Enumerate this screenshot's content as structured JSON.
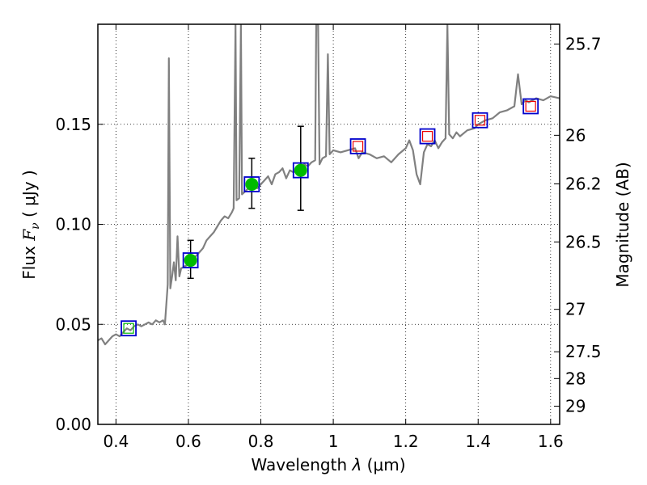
{
  "chart_data": {
    "type": "line",
    "xlabel": {
      "prefix": "Wavelength  ",
      "symbol": "λ",
      "suffix": " (μm)"
    },
    "ylabel": {
      "prefix": "Flux  ",
      "symbol": "F",
      "subscript": "ν",
      "suffix": "  ( μJy )"
    },
    "y2label": "Magnitude (AB)",
    "xlim": [
      0.35,
      1.625
    ],
    "ylim": [
      0.0,
      0.2
    ],
    "grid": true,
    "x_ticks": [
      {
        "value": 0.4,
        "label": "0.4"
      },
      {
        "value": 0.6,
        "label": "0.6"
      },
      {
        "value": 0.8,
        "label": "0.8"
      },
      {
        "value": 1.0,
        "label": "1"
      },
      {
        "value": 1.2,
        "label": "1.2"
      },
      {
        "value": 1.4,
        "label": "1.4"
      },
      {
        "value": 1.6,
        "label": "1.6"
      }
    ],
    "y_ticks": [
      {
        "value": 0.0,
        "label": "0.00"
      },
      {
        "value": 0.05,
        "label": "0.05"
      },
      {
        "value": 0.1,
        "label": "0.10"
      },
      {
        "value": 0.15,
        "label": "0.15"
      }
    ],
    "y2_ticks": [
      {
        "label": "25.7",
        "flux": 0.1901
      },
      {
        "label": "26",
        "flux": 0.1445
      },
      {
        "label": "26.2",
        "flux": 0.1202
      },
      {
        "label": "26.5",
        "flux": 0.0912
      },
      {
        "label": "27",
        "flux": 0.0575
      },
      {
        "label": "27.5",
        "flux": 0.0363
      },
      {
        "label": "28",
        "flux": 0.0229
      },
      {
        "label": "29",
        "flux": 0.0091
      }
    ],
    "spectrum_color": "#808080",
    "spectrum": [
      [
        0.35,
        0.042
      ],
      [
        0.36,
        0.043
      ],
      [
        0.37,
        0.04
      ],
      [
        0.38,
        0.042
      ],
      [
        0.39,
        0.044
      ],
      [
        0.4,
        0.045
      ],
      [
        0.41,
        0.044
      ],
      [
        0.42,
        0.046
      ],
      [
        0.43,
        0.048
      ],
      [
        0.44,
        0.047
      ],
      [
        0.45,
        0.049
      ],
      [
        0.46,
        0.05
      ],
      [
        0.47,
        0.049
      ],
      [
        0.48,
        0.05
      ],
      [
        0.49,
        0.051
      ],
      [
        0.5,
        0.05
      ],
      [
        0.51,
        0.052
      ],
      [
        0.52,
        0.051
      ],
      [
        0.53,
        0.052
      ],
      [
        0.535,
        0.05
      ],
      [
        0.543,
        0.07
      ],
      [
        0.546,
        0.183
      ],
      [
        0.55,
        0.068
      ],
      [
        0.555,
        0.074
      ],
      [
        0.56,
        0.081
      ],
      [
        0.565,
        0.072
      ],
      [
        0.57,
        0.094
      ],
      [
        0.575,
        0.074
      ],
      [
        0.58,
        0.078
      ],
      [
        0.59,
        0.079
      ],
      [
        0.6,
        0.08
      ],
      [
        0.61,
        0.082
      ],
      [
        0.62,
        0.084
      ],
      [
        0.63,
        0.086
      ],
      [
        0.64,
        0.088
      ],
      [
        0.65,
        0.092
      ],
      [
        0.66,
        0.094
      ],
      [
        0.67,
        0.096
      ],
      [
        0.68,
        0.099
      ],
      [
        0.69,
        0.102
      ],
      [
        0.7,
        0.104
      ],
      [
        0.71,
        0.103
      ],
      [
        0.72,
        0.106
      ],
      [
        0.725,
        0.108
      ],
      [
        0.73,
        0.2
      ],
      [
        0.733,
        0.112
      ],
      [
        0.74,
        0.113
      ],
      [
        0.745,
        0.2
      ],
      [
        0.748,
        0.115
      ],
      [
        0.76,
        0.117
      ],
      [
        0.77,
        0.119
      ],
      [
        0.78,
        0.121
      ],
      [
        0.79,
        0.118
      ],
      [
        0.8,
        0.12
      ],
      [
        0.81,
        0.122
      ],
      [
        0.82,
        0.124
      ],
      [
        0.83,
        0.12
      ],
      [
        0.84,
        0.125
      ],
      [
        0.85,
        0.126
      ],
      [
        0.86,
        0.128
      ],
      [
        0.87,
        0.123
      ],
      [
        0.88,
        0.127
      ],
      [
        0.89,
        0.126
      ],
      [
        0.9,
        0.127
      ],
      [
        0.91,
        0.128
      ],
      [
        0.92,
        0.13
      ],
      [
        0.93,
        0.129
      ],
      [
        0.94,
        0.131
      ],
      [
        0.95,
        0.132
      ],
      [
        0.953,
        0.2
      ],
      [
        0.958,
        0.2
      ],
      [
        0.962,
        0.13
      ],
      [
        0.97,
        0.133
      ],
      [
        0.98,
        0.134
      ],
      [
        0.985,
        0.185
      ],
      [
        0.99,
        0.135
      ],
      [
        1.0,
        0.137
      ],
      [
        1.02,
        0.136
      ],
      [
        1.04,
        0.137
      ],
      [
        1.06,
        0.138
      ],
      [
        1.07,
        0.133
      ],
      [
        1.08,
        0.136
      ],
      [
        1.1,
        0.135
      ],
      [
        1.12,
        0.133
      ],
      [
        1.14,
        0.134
      ],
      [
        1.16,
        0.131
      ],
      [
        1.18,
        0.135
      ],
      [
        1.2,
        0.138
      ],
      [
        1.21,
        0.142
      ],
      [
        1.22,
        0.137
      ],
      [
        1.23,
        0.125
      ],
      [
        1.24,
        0.12
      ],
      [
        1.25,
        0.136
      ],
      [
        1.26,
        0.14
      ],
      [
        1.27,
        0.139
      ],
      [
        1.28,
        0.142
      ],
      [
        1.29,
        0.138
      ],
      [
        1.3,
        0.141
      ],
      [
        1.31,
        0.143
      ],
      [
        1.315,
        0.2
      ],
      [
        1.32,
        0.145
      ],
      [
        1.33,
        0.143
      ],
      [
        1.34,
        0.146
      ],
      [
        1.35,
        0.144
      ],
      [
        1.37,
        0.147
      ],
      [
        1.39,
        0.148
      ],
      [
        1.4,
        0.15
      ],
      [
        1.42,
        0.152
      ],
      [
        1.44,
        0.153
      ],
      [
        1.46,
        0.156
      ],
      [
        1.48,
        0.157
      ],
      [
        1.5,
        0.159
      ],
      [
        1.51,
        0.175
      ],
      [
        1.52,
        0.16
      ],
      [
        1.53,
        0.162
      ],
      [
        1.54,
        0.161
      ],
      [
        1.56,
        0.163
      ],
      [
        1.58,
        0.162
      ],
      [
        1.6,
        0.164
      ],
      [
        1.625,
        0.163
      ]
    ],
    "model_photometry": {
      "marker": "blue-square",
      "color": "#0000cc",
      "x": [
        0.435,
        0.606,
        0.775,
        0.91,
        1.068,
        1.26,
        1.405,
        1.545
      ],
      "y": [
        0.048,
        0.082,
        0.12,
        0.127,
        0.139,
        0.144,
        0.152,
        0.159
      ]
    },
    "observed_detections": {
      "marker": "green-circle",
      "color": "#00bb00",
      "x": [
        0.606,
        0.775,
        0.91
      ],
      "y": [
        0.082,
        0.12,
        0.127
      ],
      "err_low": [
        0.009,
        0.012,
        0.02
      ],
      "err_high": [
        0.01,
        0.013,
        0.022
      ]
    },
    "upper_limits": {
      "marker": "red-open-square",
      "color": "#ee0000",
      "x": [
        1.068,
        1.26,
        1.405,
        1.545
      ],
      "y": [
        0.139,
        0.144,
        0.152,
        0.159
      ]
    },
    "other_points": {
      "marker": "green-open-square",
      "color": "#00bb00",
      "x": [
        0.435
      ],
      "y": [
        0.048
      ]
    }
  }
}
